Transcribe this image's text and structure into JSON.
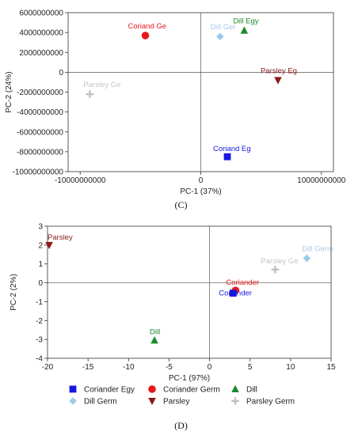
{
  "chart_data": [
    {
      "type": "scatter",
      "panel_label": "(C)",
      "xlabel": "PC-1 (37%)",
      "ylabel": "PC-2 (24%)",
      "xlim": [
        -11000000000,
        11000000000
      ],
      "ylim": [
        -10000000000,
        6000000000
      ],
      "x_ticks": [
        -10000000000,
        0,
        10000000000
      ],
      "x_tick_labels": [
        "-10000000000",
        "0",
        "10000000000"
      ],
      "y_ticks": [
        6000000000,
        4000000000,
        2000000000,
        0,
        -2000000000,
        -4000000000,
        -6000000000,
        -8000000000,
        -10000000000
      ],
      "y_tick_labels": [
        "6000000000",
        "4000000000",
        "2000000000",
        "0",
        "-2000000000",
        "-4000000000",
        "-6000000000",
        "-8000000000",
        "-10000000000"
      ],
      "grid": false,
      "points": [
        {
          "label": "Coriand Ge",
          "x": -4600000000,
          "y": 3700000000,
          "marker": "circle",
          "color": "#e8191b",
          "label_color": "#e8191b"
        },
        {
          "label": "Dill Ger",
          "x": 1600000000,
          "y": 3600000000,
          "marker": "diamond",
          "color": "#9ecae9",
          "label_color": "#a9c9ea"
        },
        {
          "label": "Dill Egy",
          "x": 3600000000,
          "y": 4200000000,
          "marker": "triangle",
          "color": "#1a8c2a",
          "label_color": "#1a8c2a"
        },
        {
          "label": "Parsley Eg",
          "x": 6400000000,
          "y": -800000000,
          "marker": "triangle-down",
          "color": "#8b1a1a",
          "label_color": "#8b1a1a"
        },
        {
          "label": "Parsley Ge",
          "x": -9200000000,
          "y": -2200000000,
          "marker": "plus",
          "color": "#c0c0c0",
          "label_color": "#c4c4c4"
        },
        {
          "label": "Coriand Eg",
          "x": 2200000000,
          "y": -8500000000,
          "marker": "square",
          "color": "#1717e0",
          "label_color": "#1717e0"
        }
      ]
    },
    {
      "type": "scatter",
      "panel_label": "(D)",
      "xlabel": "PC-1 (97%)",
      "ylabel": "PC-2 (2%)",
      "xlim": [
        -20,
        15
      ],
      "ylim": [
        -4,
        3
      ],
      "x_ticks": [
        -20,
        -15,
        -10,
        -5,
        0,
        5,
        10,
        15
      ],
      "x_tick_labels": [
        "-20",
        "-15",
        "-10",
        "-5",
        "0",
        "5",
        "10",
        "15"
      ],
      "y_ticks": [
        3,
        2,
        1,
        0,
        -1,
        -2,
        -3,
        -4
      ],
      "y_tick_labels": [
        "3",
        "2",
        "1",
        "0",
        "-1",
        "-2",
        "-3",
        "-4"
      ],
      "grid": false,
      "legend_position": "bottom",
      "points": [
        {
          "label": "Parsley",
          "x": -19.8,
          "y": 2.0,
          "marker": "triangle-down",
          "color": "#8b1a1a",
          "label_color": "#8b1a1a"
        },
        {
          "label": "Dill Germ",
          "x": 12.0,
          "y": 1.3,
          "marker": "diamond",
          "color": "#9ecae9",
          "label_color": "#a9c9ea"
        },
        {
          "label": "Parsley Ge",
          "x": 8.1,
          "y": 0.7,
          "marker": "plus",
          "color": "#c0c0c0",
          "label_color": "#c4c4c4"
        },
        {
          "label": "Coriander",
          "x": 3.2,
          "y": -0.4,
          "marker": "circle",
          "color": "#e8191b",
          "label_color": "#e8191b"
        },
        {
          "label": "Coriander",
          "x": 2.9,
          "y": -0.55,
          "marker": "square",
          "color": "#1717e0",
          "label_color": "#1717e0"
        },
        {
          "label": "Dill",
          "x": -6.8,
          "y": -3.05,
          "marker": "triangle",
          "color": "#1a8c2a",
          "label_color": "#1a8c2a"
        }
      ],
      "legend": [
        {
          "name": "Coriander Egy",
          "marker": "square",
          "color": "#1717e0"
        },
        {
          "name": "Coriander Germ",
          "marker": "circle",
          "color": "#e8191b"
        },
        {
          "name": "Dill",
          "marker": "triangle",
          "color": "#1a8c2a"
        },
        {
          "name": "Dill Germ",
          "marker": "diamond",
          "color": "#9ecae9"
        },
        {
          "name": "Parsley",
          "marker": "triangle-down",
          "color": "#8b1a1a"
        },
        {
          "name": "Parsley Germ",
          "marker": "plus",
          "color": "#c0c0c0"
        }
      ]
    }
  ]
}
